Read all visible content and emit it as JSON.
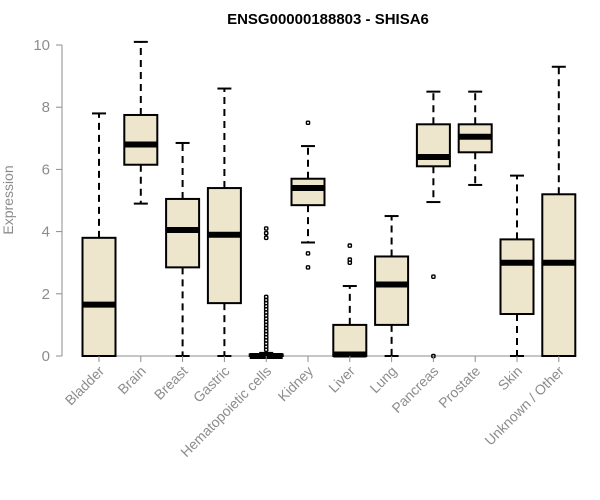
{
  "chart_data": {
    "type": "boxplot",
    "title": "ENSG00000188803 - SHISA6",
    "xlabel": "",
    "ylabel": "Expression",
    "ylim": [
      0,
      10
    ],
    "yticks": [
      0,
      2,
      4,
      6,
      8,
      10
    ],
    "box_fill": "#ede6cd",
    "axis_color": "#8c8c8c",
    "categories": [
      "Bladder",
      "Brain",
      "Breast",
      "Gastric",
      "Hematopoietic cells",
      "Kidney",
      "Liver",
      "Lung",
      "Pancreas",
      "Prostate",
      "Skin",
      "Unknown / Other"
    ],
    "series": [
      {
        "name": "Bladder",
        "min": 0,
        "q1": 0,
        "median": 1.65,
        "q3": 3.8,
        "max": 7.8,
        "outliers": []
      },
      {
        "name": "Brain",
        "min": 4.9,
        "q1": 6.15,
        "median": 6.8,
        "q3": 7.75,
        "max": 10.1,
        "outliers": []
      },
      {
        "name": "Breast",
        "min": 0,
        "q1": 2.85,
        "median": 4.05,
        "q3": 5.05,
        "max": 6.85,
        "outliers": []
      },
      {
        "name": "Gastric",
        "min": 0,
        "q1": 1.7,
        "median": 3.9,
        "q3": 5.4,
        "max": 8.6,
        "outliers": []
      },
      {
        "name": "Hematopoietic cells",
        "min": 0,
        "q1": 0,
        "median": 0,
        "q3": 0.05,
        "max": 0.1,
        "outliers": [
          0.2,
          0.3,
          0.4,
          0.5,
          0.6,
          0.7,
          0.8,
          0.9,
          1.0,
          1.1,
          1.2,
          1.3,
          1.4,
          1.5,
          1.6,
          1.7,
          1.8,
          1.9,
          3.8,
          3.95,
          4.1
        ]
      },
      {
        "name": "Kidney",
        "min": 3.65,
        "q1": 4.85,
        "median": 5.4,
        "q3": 5.7,
        "max": 6.75,
        "outliers": [
          7.5,
          3.3,
          2.85
        ]
      },
      {
        "name": "Liver",
        "min": 0,
        "q1": 0,
        "median": 0.05,
        "q3": 1.0,
        "max": 2.25,
        "outliers": [
          3.55,
          3.1,
          3.0
        ]
      },
      {
        "name": "Lung",
        "min": 0,
        "q1": 1.0,
        "median": 2.3,
        "q3": 3.2,
        "max": 4.5,
        "outliers": []
      },
      {
        "name": "Pancreas",
        "min": 4.95,
        "q1": 6.1,
        "median": 6.4,
        "q3": 7.45,
        "max": 8.5,
        "outliers": [
          2.55,
          0
        ]
      },
      {
        "name": "Prostate",
        "min": 5.5,
        "q1": 6.55,
        "median": 7.05,
        "q3": 7.45,
        "max": 8.5,
        "outliers": []
      },
      {
        "name": "Skin",
        "min": 0,
        "q1": 1.35,
        "median": 3.0,
        "q3": 3.75,
        "max": 5.8,
        "outliers": []
      },
      {
        "name": "Unknown / Other",
        "min": 0,
        "q1": 0,
        "median": 3.0,
        "q3": 5.2,
        "max": 9.3,
        "outliers": []
      }
    ]
  }
}
